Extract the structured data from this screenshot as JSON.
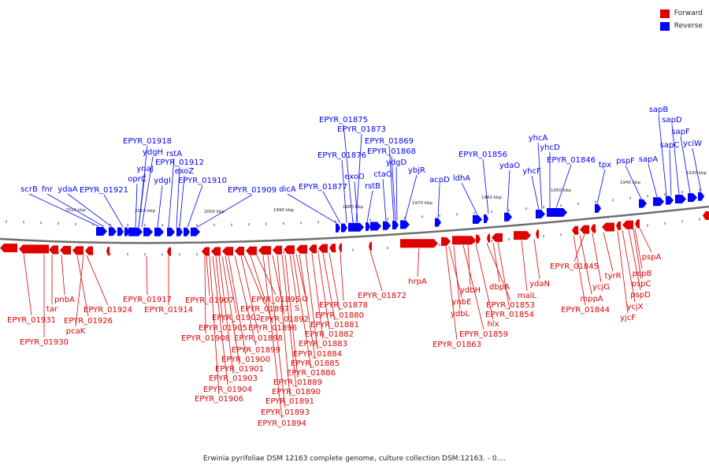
{
  "legend": {
    "forward_label": "Forward",
    "reverse_label": "Reverse",
    "forward_color": "#e00000",
    "reverse_color": "#0000ff"
  },
  "caption": "Erwinia pyrifoliae DSM 12163 complete genome, culture collection DSM:12163. - 0....",
  "scale_labels": [
    "2020 kbp",
    "2010 kbp",
    "2000 kbp",
    "1990 kbp",
    "1980 kbp",
    "1970 kbp",
    "1960 kbp",
    "1950 kbp",
    "1940 kbp",
    "1930 kbp"
  ],
  "reverse_labels": [
    "scrB",
    "fnr",
    "ydaA",
    "EPYR_01921",
    "EPYR_01918",
    "ydgH",
    "ynaJ",
    "oprC",
    "ydgI",
    "rstA",
    "EPYR_01912",
    "exoZ",
    "EPYR_01910",
    "EPYR_01909",
    "dicA",
    "EPYR_01877",
    "EPYR_01876",
    "EPYR_01875",
    "EPYR_01873",
    "exoO",
    "rstB",
    "EPYR_01869",
    "EPYR_01868",
    "ctaO",
    "ydgD",
    "ybjR",
    "acpD",
    "ldhA",
    "EPYR_01856",
    "ydaO",
    "yhcF",
    "yhcA",
    "yhcD",
    "EPYR_01846",
    "tpx",
    "pspF",
    "sapA",
    "sapC",
    "sapB",
    "sapD",
    "sapF",
    "yciW"
  ],
  "forward_labels": [
    "EPYR_01931",
    "EPYR_01930",
    "tar",
    "pnbA",
    "EPYR_01926",
    "pcaK",
    "EPYR_01924",
    "EPYR_01917",
    "EPYR_01914",
    "EPYR_01907",
    "EPYR_01908",
    "EPYR_01905",
    "EPYR_01902",
    "EPYR_01906",
    "EPYR_01904",
    "EPYR_01903",
    "EPYR_01901",
    "EPYR_01900",
    "EPYR_01899",
    "EPYR_01898",
    "EPYR_01897",
    "EPYR_01896",
    "EPYR_01895",
    "EPYR_01894",
    "EPYR_01893",
    "EPYR_01892",
    "EPYR_01891",
    "EPYR_01890",
    "EPYR_01889",
    "EPYR_01886",
    "EPYR_01885",
    "EPYR_01884",
    "EPYR_01883",
    "EPYR_01882",
    "EPYR_01881",
    "EPYR_01880",
    "EPYR_01878",
    "Q",
    "S",
    "EPYR_01872",
    "hrpA",
    "ynbE",
    "ydbL",
    "ydbH",
    "EPYR_01863",
    "hlx",
    "EPYR_01859",
    "dbpA",
    "EPYR_01853",
    "EPYR_01854",
    "malL",
    "ydaN",
    "EPYR_01845",
    "EPYR_01844",
    "mppA",
    "ycjG",
    "tyrR",
    "yjcF",
    "ycjX",
    "pspD",
    "pspC",
    "pspB",
    "pspA"
  ]
}
